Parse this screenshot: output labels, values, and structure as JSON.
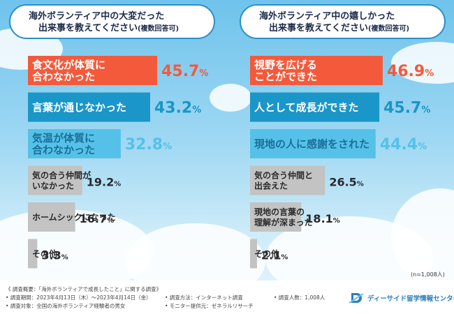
{
  "panels": [
    {
      "title_line1": "海外ボランティア中の大変だった",
      "title_line2": "出来事を教えてください",
      "title_note": "(複数回答可)"
    },
    {
      "title_line1": "海外ボランティア中の嬉しかった",
      "title_line2": "出来事を教えてください",
      "title_note": "(複数回答可)"
    }
  ],
  "chart_data": [
    {
      "type": "bar",
      "orientation": "horizontal",
      "title": "海外ボランティア中の大変だった出来事を教えてください(複数回答可)",
      "categories": [
        [
          "食文化が体質に",
          "合わなかった"
        ],
        [
          "言葉が通じなかった"
        ],
        [
          "気温が体質に",
          "合わなかった"
        ],
        [
          "気の合う仲間が",
          "いなかった"
        ],
        [
          "ホームシックになった"
        ],
        [
          "その他"
        ]
      ],
      "values": [
        45.7,
        43.2,
        32.8,
        19.2,
        16.7,
        3.3
      ],
      "labels": [
        "45.7%",
        "43.2%",
        "32.8%",
        "19.2%",
        "16.7%",
        "3.3%"
      ],
      "colors": [
        "#f35a3b",
        "#1a96c8",
        "#56c1e8",
        "#c3c3c3",
        "#c3c3c3",
        "#c3c3c3"
      ],
      "text_colors": [
        "#f35a3b",
        "#1a96c8",
        "#56c1e8",
        "#2a2a2a",
        "#2a2a2a",
        "#2a2a2a"
      ],
      "label_colors": [
        "#ffffff",
        "#ffffff",
        "#1a6f96",
        "#2a2a2a",
        "#2a2a2a",
        "#2a2a2a"
      ]
    },
    {
      "type": "bar",
      "orientation": "horizontal",
      "title": "海外ボランティア中の嬉しかった出来事を教えてください(複数回答可)",
      "categories": [
        [
          "視野を広げる",
          "ことができた"
        ],
        [
          "人として成長ができた"
        ],
        [
          "現地の人に感謝をされた"
        ],
        [
          "気の合う仲間と",
          "出会えた"
        ],
        [
          "現地の言葉の",
          "理解が深まった"
        ],
        [
          "その他"
        ]
      ],
      "values": [
        46.9,
        45.7,
        44.4,
        26.5,
        18.1,
        2.1
      ],
      "labels": [
        "46.9%",
        "45.7%",
        "44.4%",
        "26.5%",
        "18.1%",
        "2.1%"
      ],
      "colors": [
        "#f35a3b",
        "#1a96c8",
        "#56c1e8",
        "#c3c3c3",
        "#c3c3c3",
        "#c3c3c3"
      ],
      "text_colors": [
        "#f35a3b",
        "#1a96c8",
        "#56c1e8",
        "#2a2a2a",
        "#2a2a2a",
        "#2a2a2a"
      ],
      "label_colors": [
        "#ffffff",
        "#ffffff",
        "#1a6f96",
        "#2a2a2a",
        "#2a2a2a",
        "#2a2a2a"
      ]
    }
  ],
  "sample_size": "(n=1,008人)",
  "footer": {
    "overview": "《 調査概要：「海外ボランティアで成長したこと」に関する調査》",
    "period": "• 調査期間：2023年4月13日（木）〜2023年4月14日（金）",
    "method": "• 調査方法：インターネット調査",
    "count": "• 調査人数：1,008人",
    "target": "• 調査対象：全国の海外ボランティア経験者の男女",
    "provider": "• モニター提供元：ゼネラルリサーチ",
    "logo": "ディーサイド留学情報センター"
  }
}
